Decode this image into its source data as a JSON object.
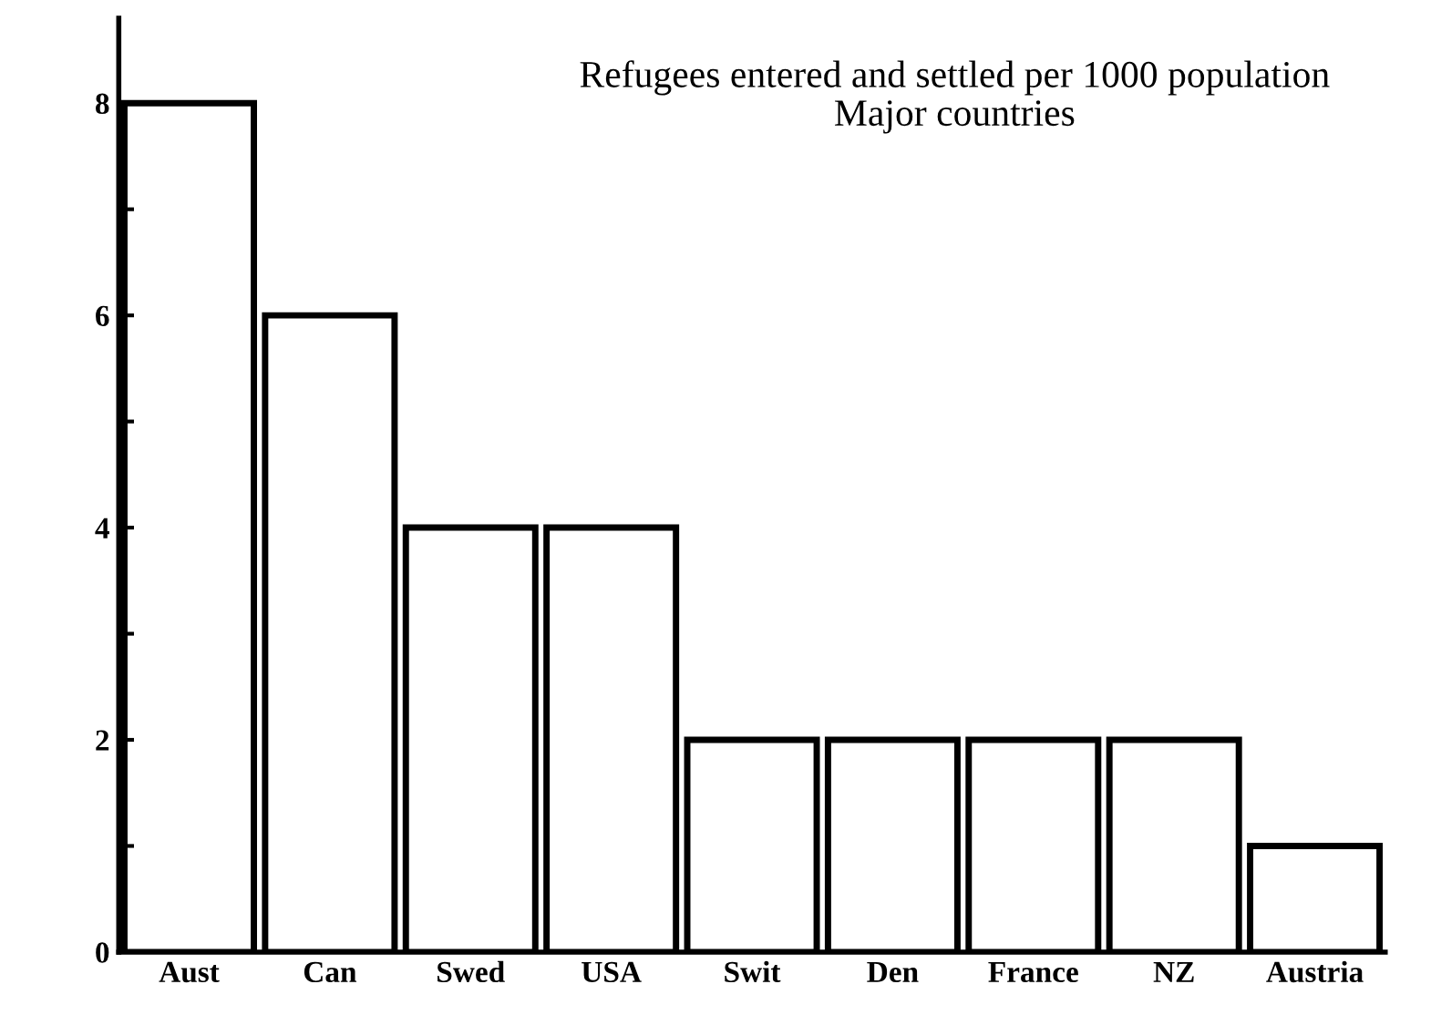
{
  "chart_data": {
    "type": "bar",
    "title": "Refugees entered and settled per 1000 population",
    "subtitle": "Major countries",
    "categories": [
      "Aust",
      "Can",
      "Swed",
      "USA",
      "Swit",
      "Den",
      "France",
      "NZ",
      "Austria"
    ],
    "values": [
      8,
      6,
      4,
      4,
      2,
      2,
      2,
      2,
      1
    ],
    "color": "#ffffff",
    "ylim": [
      0,
      8.8
    ],
    "yticks": [
      0,
      {
        "value": 1,
        "label": null
      },
      2,
      {
        "value": 3,
        "label": null
      },
      4,
      {
        "value": 5,
        "label": null
      },
      6,
      {
        "value": 7,
        "label": null
      },
      8
    ],
    "grid": false,
    "legend": false
  }
}
